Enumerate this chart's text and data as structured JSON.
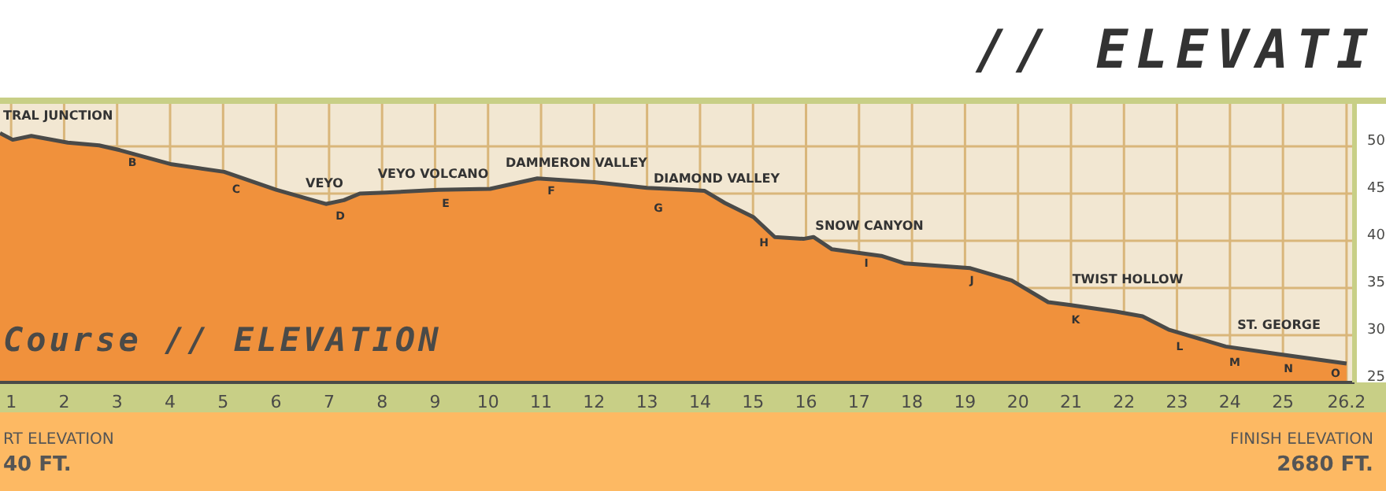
{
  "chart_data": {
    "type": "area",
    "title": "// ELEVATI",
    "x": [
      0.79,
      1.03,
      1.38,
      2.07,
      2.66,
      3.05,
      4.03,
      5.02,
      6.0,
      6.94,
      7.28,
      7.58,
      8.07,
      9.06,
      10.04,
      10.93,
      12.01,
      13.0,
      13.78,
      14.08,
      14.47,
      15.01,
      15.41,
      15.95,
      16.14,
      16.49,
      17.42,
      17.87,
      19.1,
      19.88,
      20.57,
      20.97,
      21.85,
      22.35,
      22.84,
      23.92,
      24.91,
      26.2
    ],
    "series": [
      {
        "color": "#f0913c",
        "values": [
          51.4,
          50.7,
          51.1,
          50.4,
          50.1,
          49.6,
          48.1,
          47.3,
          45.4,
          43.9,
          44.3,
          45.0,
          45.1,
          45.4,
          45.5,
          46.6,
          46.2,
          45.6,
          45.4,
          45.3,
          44.0,
          42.5,
          40.4,
          40.2,
          40.4,
          39.1,
          38.4,
          37.6,
          37.1,
          35.8,
          33.5,
          33.2,
          32.5,
          32.0,
          30.6,
          28.8,
          28.0,
          27.0
        ]
      }
    ],
    "xlim": [
      0.79,
      26.35
    ],
    "xticks": [
      1,
      2,
      3,
      4,
      5,
      6,
      7,
      8,
      9,
      10,
      11,
      12,
      13,
      14,
      15,
      16,
      17,
      18,
      19,
      20,
      21,
      22,
      23,
      24,
      25,
      26.2
    ],
    "ylim": [
      25,
      54.5
    ],
    "yticks": [
      25,
      30,
      35,
      40,
      45,
      50
    ],
    "grid": true,
    "annotations": [
      "TRAL JUNCTION",
      "VEYO",
      "VEYO VOLCANO",
      "DAMMERON VALLEY",
      "DIAMOND VALLEY",
      "SNOW CANYON",
      "TWIST HOLLOW",
      "ST. GEORGE",
      "B",
      "C",
      "D",
      "E",
      "F",
      "G",
      "H",
      "I",
      "J",
      "K",
      "L",
      "M",
      "N",
      "O",
      "Course // ELEVATION",
      "RT ELEVATION",
      "40 FT.",
      "FINISH ELEVATION",
      "2680 FT."
    ]
  }
}
